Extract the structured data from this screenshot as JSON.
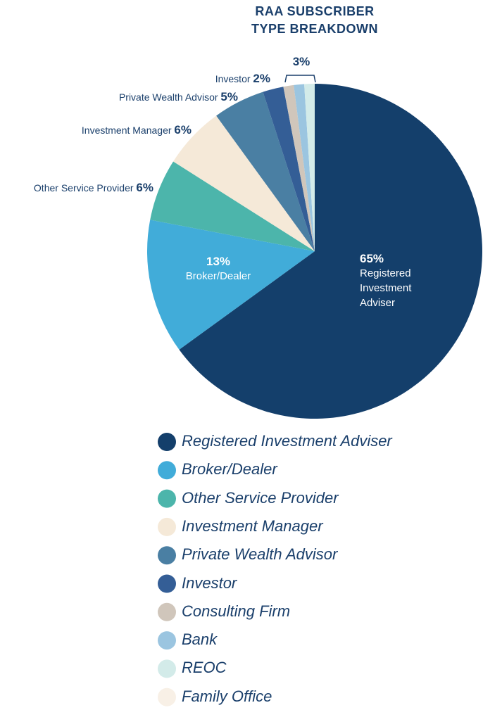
{
  "chart_data": {
    "type": "pie",
    "title": "RAA SUBSCRIBER TYPE BREAKDOWN",
    "categories": [
      "Registered Investment Adviser",
      "Broker/Dealer",
      "Other Service Provider",
      "Investment Manager",
      "Private Wealth Advisor",
      "Investor",
      "Consulting Firm",
      "Bank",
      "REOC",
      "Family Office"
    ],
    "values": [
      65,
      13,
      6,
      6,
      5,
      2,
      1,
      1,
      1,
      0
    ],
    "value_labels": [
      "65%",
      "13%",
      "6%",
      "6%",
      "5%",
      "2%",
      null,
      null,
      null,
      null
    ],
    "colors": [
      "#143f6b",
      "#41acd9",
      "#4cb5ab",
      "#f5e9d8",
      "#4a7fa3",
      "#345e96",
      "#d0c6bb",
      "#9bc5e0",
      "#d3ebe9",
      "#f8f0e6"
    ],
    "annotations": [
      {
        "text": "3%"
      }
    ],
    "legend": "bottom"
  }
}
